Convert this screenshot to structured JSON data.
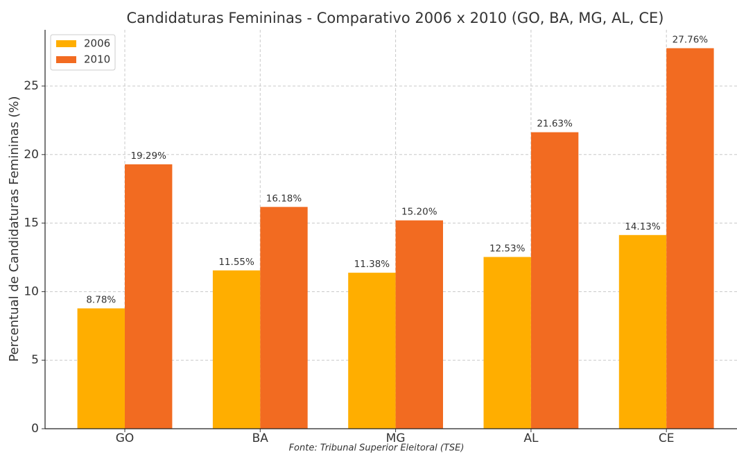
{
  "chart_data": {
    "type": "bar",
    "title": "Candidaturas Femininas - Comparativo 2006 x 2010 (GO, BA, MG, AL, CE)",
    "ylabel": "Percentual de Candidaturas Femininas (%)",
    "source": "Fonte: Tribunal Superior Eleitoral (TSE)",
    "categories": [
      "GO",
      "BA",
      "MG",
      "AL",
      "CE"
    ],
    "series": [
      {
        "name": "2006",
        "color": "#ffae00",
        "values": [
          8.78,
          11.55,
          11.38,
          12.53,
          14.13
        ],
        "value_labels": [
          "8.78%",
          "11.55%",
          "11.38%",
          "12.53%",
          "14.13%"
        ]
      },
      {
        "name": "2010",
        "color": "#f26b21",
        "values": [
          19.29,
          16.18,
          15.2,
          21.63,
          27.76
        ],
        "value_labels": [
          "19.29%",
          "16.18%",
          "15.20%",
          "21.63%",
          "27.76%"
        ]
      }
    ],
    "ylim": [
      0,
      29.1
    ],
    "yticks": [
      0,
      5,
      10,
      15,
      20,
      25
    ],
    "grid": true,
    "legend": "upper left"
  }
}
